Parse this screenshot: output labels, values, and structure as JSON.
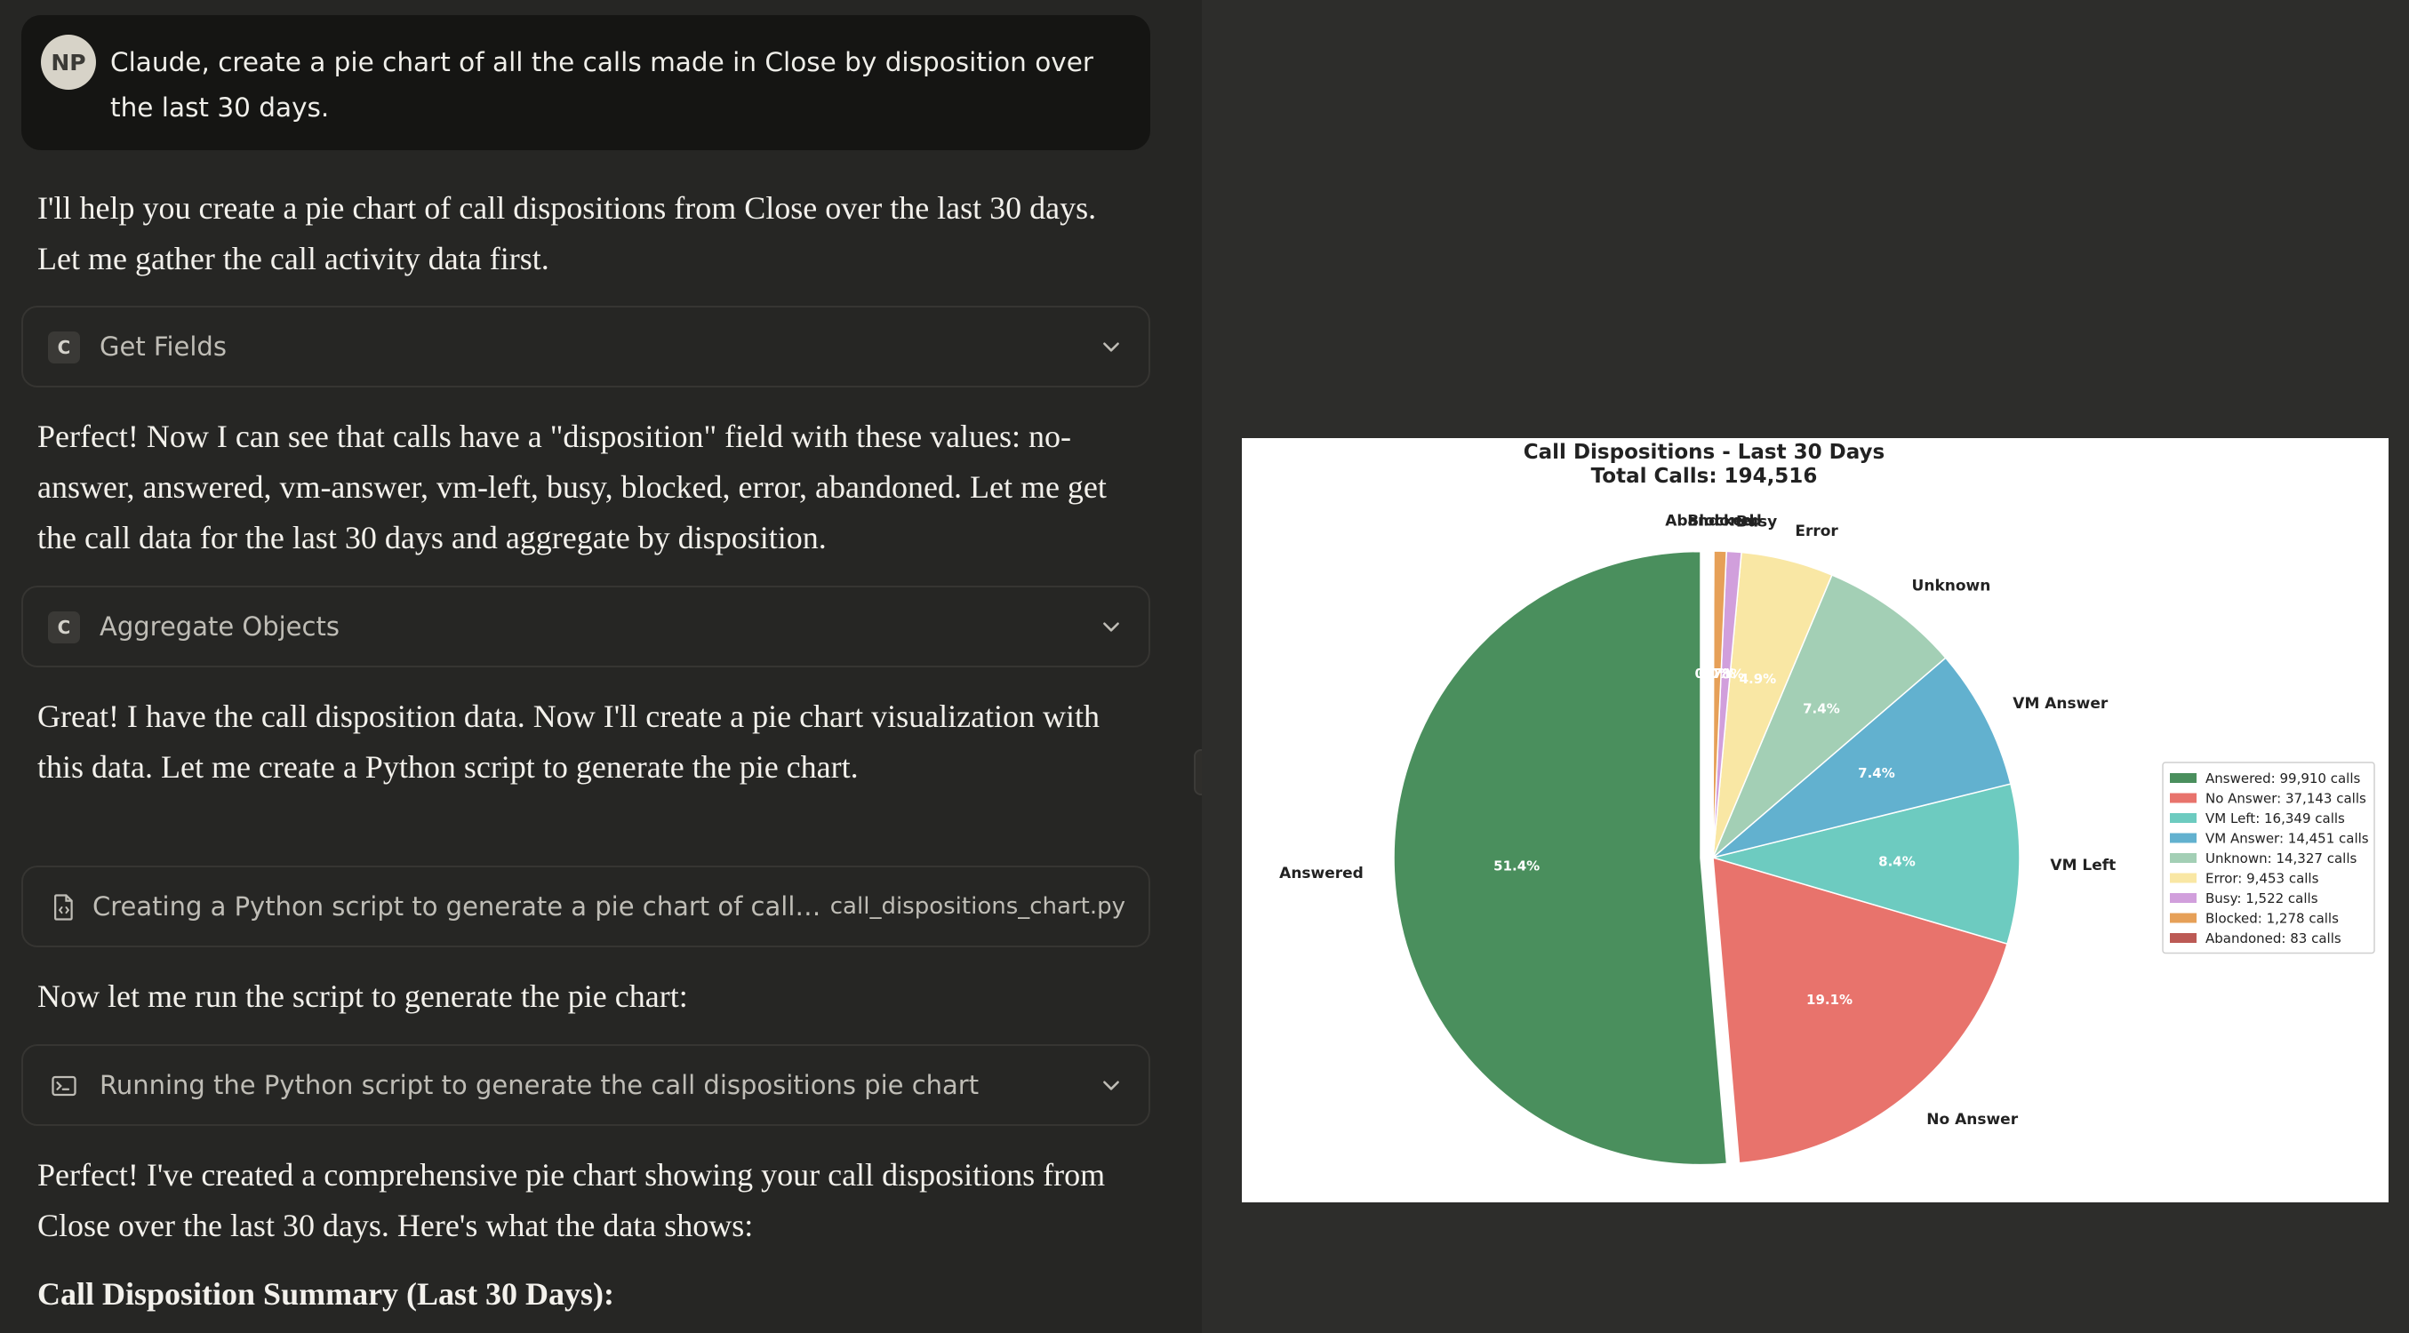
{
  "user_message": {
    "avatar_initials": "NP",
    "text": "Claude, create a pie chart of all the calls made in Close by disposition over the last 30 days."
  },
  "assistant": {
    "intro": "I'll help you create a pie chart of call dispositions from Close over the last 30 days. Let me gather the call activity data first.",
    "tool_get_fields": {
      "badge": "C",
      "label": "Get Fields"
    },
    "para_fields": "Perfect! Now I can see that calls have a \"disposition\" field with these values: no-answer, answered, vm-answer, vm-left, busy, blocked, error, abandoned. Let me get the call data for the last 30 days and aggregate by disposition.",
    "tool_aggregate": {
      "badge": "C",
      "label": "Aggregate Objects"
    },
    "para_script": "Great! I have the call disposition data. Now I'll create a pie chart visualization with this data. Let me create a Python script to generate the pie chart.",
    "tool_create_file": {
      "label": "Creating a Python script to generate a pie chart of call dispositions from Close",
      "filename": "call_dispositions_chart.py"
    },
    "para_run": "Now let me run the script to generate the pie chart:",
    "tool_run": {
      "label": "Running the Python script to generate the call dispositions pie chart"
    },
    "para_done": "Perfect! I've created a comprehensive pie chart showing your call dispositions from Close over the last 30 days. Here's what the data shows:",
    "summary_heading": "Call Disposition Summary (Last 30 Days):"
  },
  "chart_data": {
    "type": "pie",
    "title": "Call Dispositions - Last 30 Days",
    "subtitle": "Total Calls: 194,516",
    "legend_position": "right",
    "slices": [
      {
        "label": "Answered",
        "value": 99910,
        "pct_label": "51.4%",
        "legend": "Answered: 99,910 calls",
        "color": "#4a8f5d",
        "exploded": true
      },
      {
        "label": "No Answer",
        "value": 37143,
        "pct_label": "19.1%",
        "legend": "No Answer: 37,143 calls",
        "color": "#e8736c"
      },
      {
        "label": "VM Left",
        "value": 16349,
        "pct_label": "8.4%",
        "legend": "VM Left: 16,349 calls",
        "color": "#6dcbc0"
      },
      {
        "label": "VM Answer",
        "value": 14451,
        "pct_label": "7.4%",
        "legend": "VM Answer: 14,451 calls",
        "color": "#62b1cf"
      },
      {
        "label": "Unknown",
        "value": 14327,
        "pct_label": "7.4%",
        "legend": "Unknown: 14,327 calls",
        "color": "#a3cfb5"
      },
      {
        "label": "Error",
        "value": 9453,
        "pct_label": "4.9%",
        "legend": "Error: 9,453 calls",
        "color": "#f9e7a4"
      },
      {
        "label": "Busy",
        "value": 1522,
        "pct_label": "0.8%",
        "legend": "Busy: 1,522 calls",
        "color": "#d19fdc"
      },
      {
        "label": "Blocked",
        "value": 1278,
        "pct_label": "0.7%",
        "legend": "Blocked: 1,278 calls",
        "color": "#e6a058"
      },
      {
        "label": "Abandoned",
        "value": 83,
        "pct_label": "0.0%",
        "legend": "Abandoned: 83 calls",
        "color": "#bc5a55"
      }
    ]
  }
}
